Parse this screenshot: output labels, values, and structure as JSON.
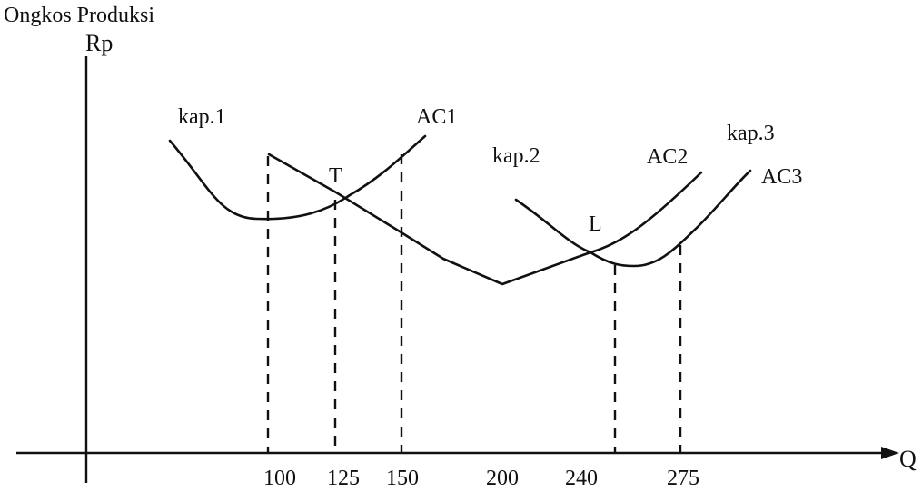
{
  "title": "Ongkos Produksi",
  "y_axis_label": "Rp",
  "x_axis_label": "Q",
  "x_ticks": [
    "100",
    "125",
    "150",
    "200",
    "240",
    "275"
  ],
  "curve_labels": {
    "kap1": "kap.1",
    "kap2": "kap.2",
    "kap3": "kap.3",
    "ac1": "AC1",
    "ac2": "AC2",
    "ac3": "AC3"
  },
  "point_labels": {
    "t": "T",
    "l": "L"
  }
}
